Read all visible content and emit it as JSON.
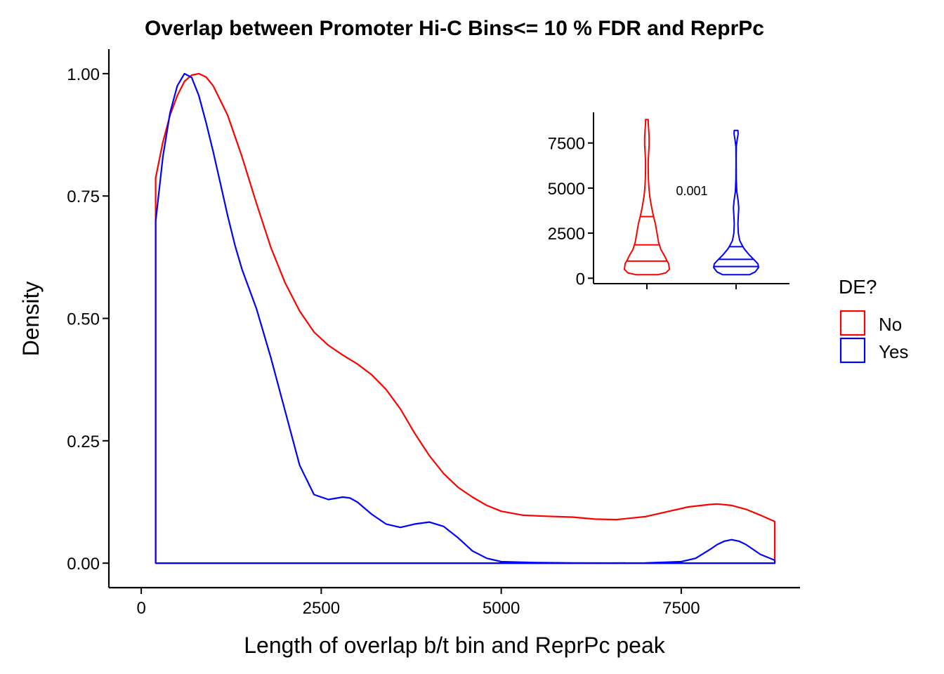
{
  "chart_data": [
    {
      "type": "line",
      "title": "Overlap between Promoter Hi-C Bins<= 10 % FDR and ReprPc",
      "xlabel": "Length of overlap b/t bin and ReprPc peak",
      "ylabel": "Density",
      "xlim": [
        -450,
        9150
      ],
      "ylim": [
        -0.05,
        1.05
      ],
      "xticks": [
        0,
        2500,
        5000,
        7500
      ],
      "xtick_labels": [
        "0",
        "2500",
        "5000",
        "7500"
      ],
      "yticks": [
        0,
        0.25,
        0.5,
        0.75,
        1.0
      ],
      "ytick_labels": [
        "0.00",
        "0.25",
        "0.50",
        "0.75",
        "1.00"
      ],
      "grid": false,
      "legend_position": "right",
      "series": [
        {
          "name": "No",
          "color": "#ff0000",
          "x": [
            200,
            300,
            400,
            500,
            600,
            700,
            800,
            900,
            1000,
            1200,
            1400,
            1600,
            1800,
            2000,
            2200,
            2400,
            2600,
            2800,
            3000,
            3200,
            3400,
            3600,
            3800,
            4000,
            4200,
            4400,
            4600,
            4800,
            5000,
            5300,
            5600,
            6000,
            6300,
            6600,
            7000,
            7300,
            7600,
            7900,
            8000,
            8200,
            8400,
            8600,
            8800
          ],
          "y": [
            0.787,
            0.86,
            0.915,
            0.955,
            0.984,
            0.997,
            1.0,
            0.993,
            0.975,
            0.915,
            0.83,
            0.735,
            0.645,
            0.572,
            0.515,
            0.472,
            0.445,
            0.425,
            0.407,
            0.385,
            0.355,
            0.315,
            0.265,
            0.22,
            0.183,
            0.155,
            0.135,
            0.118,
            0.106,
            0.098,
            0.096,
            0.094,
            0.09,
            0.089,
            0.095,
            0.105,
            0.115,
            0.12,
            0.121,
            0.118,
            0.11,
            0.098,
            0.085
          ]
        },
        {
          "name": "Yes",
          "color": "#0000ff",
          "x": [
            200,
            300,
            400,
            500,
            600,
            700,
            800,
            900,
            1000,
            1100,
            1200,
            1300,
            1400,
            1600,
            1800,
            2000,
            2200,
            2400,
            2600,
            2800,
            2900,
            3000,
            3200,
            3400,
            3600,
            3800,
            4000,
            4200,
            4400,
            4600,
            4800,
            5000,
            5500,
            6000,
            6500,
            7000,
            7500,
            7700,
            7900,
            8000,
            8100,
            8200,
            8300,
            8400,
            8600,
            8800
          ],
          "y": [
            0.698,
            0.83,
            0.92,
            0.975,
            1.0,
            0.992,
            0.955,
            0.9,
            0.84,
            0.775,
            0.71,
            0.65,
            0.6,
            0.52,
            0.42,
            0.31,
            0.2,
            0.14,
            0.13,
            0.135,
            0.133,
            0.125,
            0.1,
            0.08,
            0.073,
            0.08,
            0.084,
            0.075,
            0.052,
            0.025,
            0.01,
            0.003,
            0.001,
            0.0005,
            0.0002,
            0.0005,
            0.003,
            0.01,
            0.028,
            0.038,
            0.045,
            0.048,
            0.045,
            0.038,
            0.018,
            0.006
          ]
        }
      ],
      "legend": {
        "title": "DE?",
        "entries": [
          {
            "label": "No",
            "color": "#ff0000"
          },
          {
            "label": "Yes",
            "color": "#0000ff"
          }
        ]
      }
    },
    {
      "type": "violin",
      "ylim": [
        -300,
        9200
      ],
      "yticks": [
        0,
        2500,
        5000,
        7500
      ],
      "ytick_labels": [
        "0",
        "2500",
        "5000",
        "7500"
      ],
      "annotation": "0.001",
      "groups": [
        {
          "name": "No",
          "color": "#ff0000",
          "quantiles": [
            950,
            1850,
            3420
          ],
          "profile": [
            [
              200,
              0.5
            ],
            [
              300,
              0.85
            ],
            [
              500,
              1.0
            ],
            [
              800,
              0.97
            ],
            [
              1000,
              0.88
            ],
            [
              1300,
              0.76
            ],
            [
              1600,
              0.62
            ],
            [
              2000,
              0.52
            ],
            [
              2500,
              0.45
            ],
            [
              3000,
              0.38
            ],
            [
              3500,
              0.28
            ],
            [
              4000,
              0.2
            ],
            [
              4500,
              0.13
            ],
            [
              5000,
              0.09
            ],
            [
              5500,
              0.07
            ],
            [
              6000,
              0.06
            ],
            [
              6500,
              0.06
            ],
            [
              7000,
              0.08
            ],
            [
              7400,
              0.1
            ],
            [
              7800,
              0.1
            ],
            [
              8200,
              0.08
            ],
            [
              8600,
              0.06
            ],
            [
              8800,
              0.06
            ]
          ]
        },
        {
          "name": "Yes",
          "color": "#0000ff",
          "quantiles": [
            650,
            1050,
            1750
          ],
          "profile": [
            [
              200,
              0.6
            ],
            [
              350,
              0.85
            ],
            [
              600,
              1.0
            ],
            [
              800,
              0.97
            ],
            [
              1000,
              0.82
            ],
            [
              1300,
              0.58
            ],
            [
              1600,
              0.38
            ],
            [
              1800,
              0.28
            ],
            [
              2100,
              0.16
            ],
            [
              2500,
              0.1
            ],
            [
              3000,
              0.08
            ],
            [
              3500,
              0.1
            ],
            [
              3900,
              0.12
            ],
            [
              4300,
              0.09
            ],
            [
              4800,
              0.03
            ],
            [
              5500,
              0.008
            ],
            [
              6500,
              0.004
            ],
            [
              7300,
              0.008
            ],
            [
              7700,
              0.05
            ],
            [
              8000,
              0.09
            ],
            [
              8200,
              0.08
            ]
          ]
        }
      ]
    }
  ]
}
